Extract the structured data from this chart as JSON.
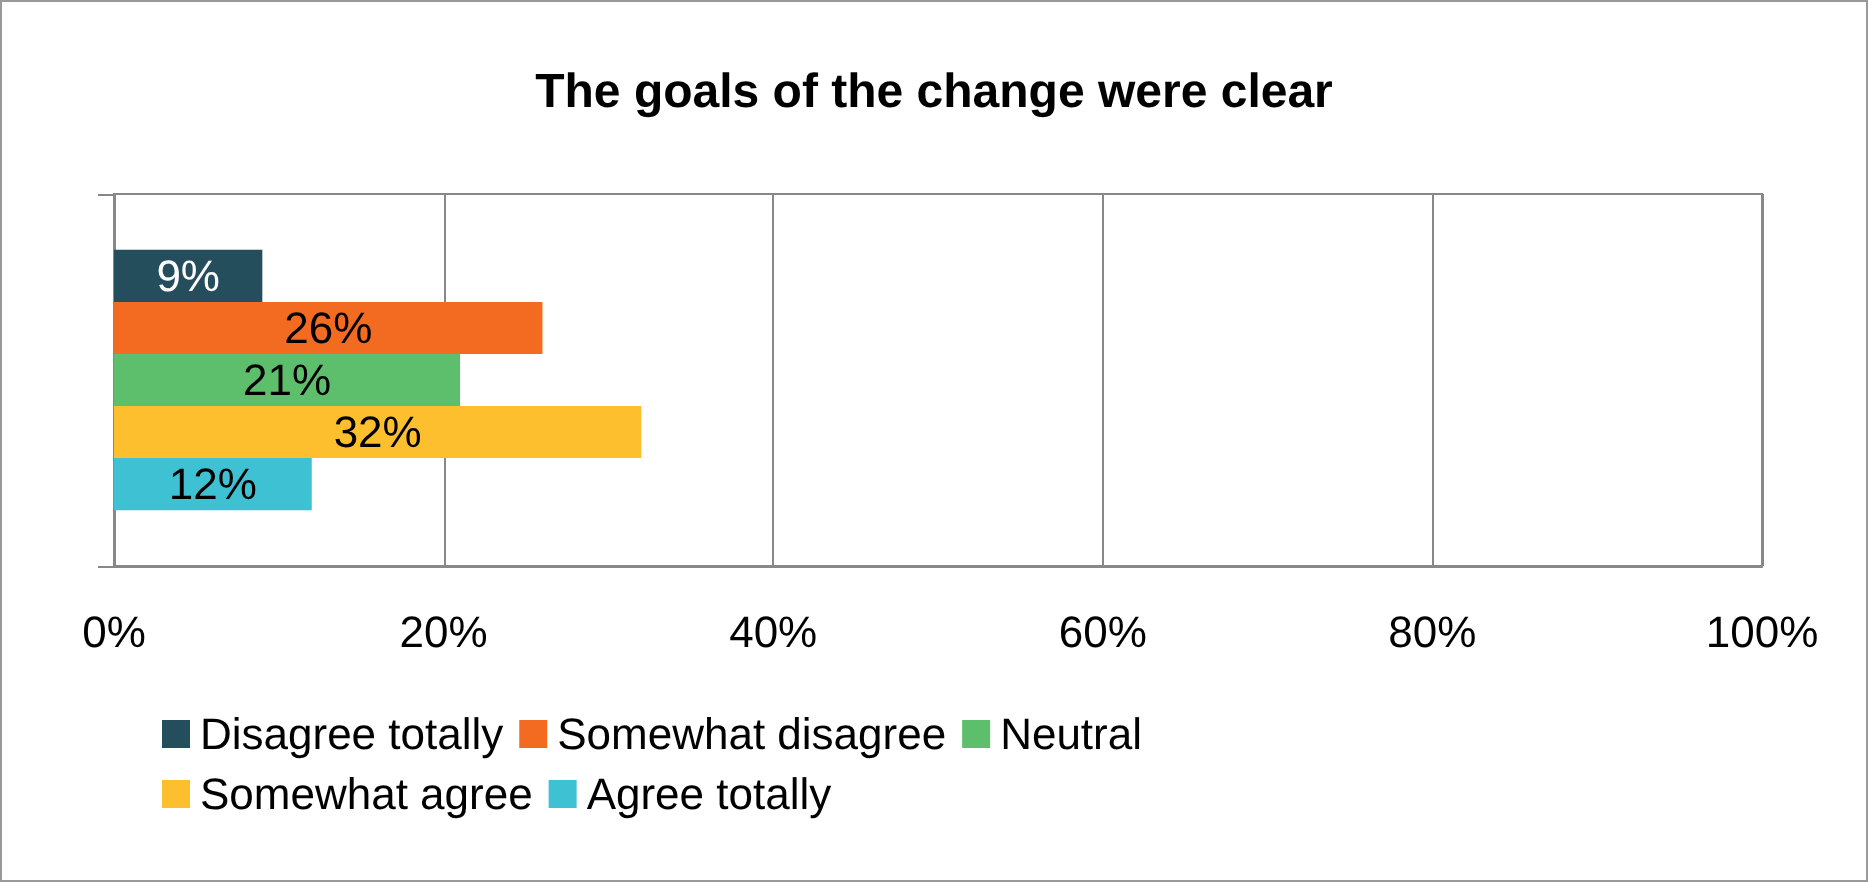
{
  "chart_data": {
    "type": "bar",
    "title": "The goals of the change were clear",
    "orientation": "horizontal",
    "categories": [
      null
    ],
    "series": [
      {
        "name": "Disagree totally",
        "color": "#254e5c",
        "values": [
          9
        ],
        "value_labels": [
          "9%"
        ]
      },
      {
        "name": "Somewhat disagree",
        "color": "#f26b21",
        "values": [
          26
        ],
        "value_labels": [
          "26%"
        ]
      },
      {
        "name": "Neutral",
        "color": "#5dbf6b",
        "values": [
          21
        ],
        "value_labels": [
          "21%"
        ]
      },
      {
        "name": "Somewhat agree",
        "color": "#fdbf2d",
        "values": [
          32
        ],
        "value_labels": [
          "32%"
        ]
      },
      {
        "name": "Agree totally",
        "color": "#3ec1d3",
        "values": [
          12
        ],
        "value_labels": [
          "12%"
        ]
      }
    ],
    "xlim": [
      0,
      100
    ],
    "xticks": [
      {
        "value": 0,
        "label": "0%"
      },
      {
        "value": 20,
        "label": "20%"
      },
      {
        "value": 40,
        "label": "40%"
      },
      {
        "value": 60,
        "label": "60%"
      },
      {
        "value": 80,
        "label": "80%"
      },
      {
        "value": 100,
        "label": "100%"
      }
    ],
    "grid": "x",
    "legend": "bottom"
  }
}
